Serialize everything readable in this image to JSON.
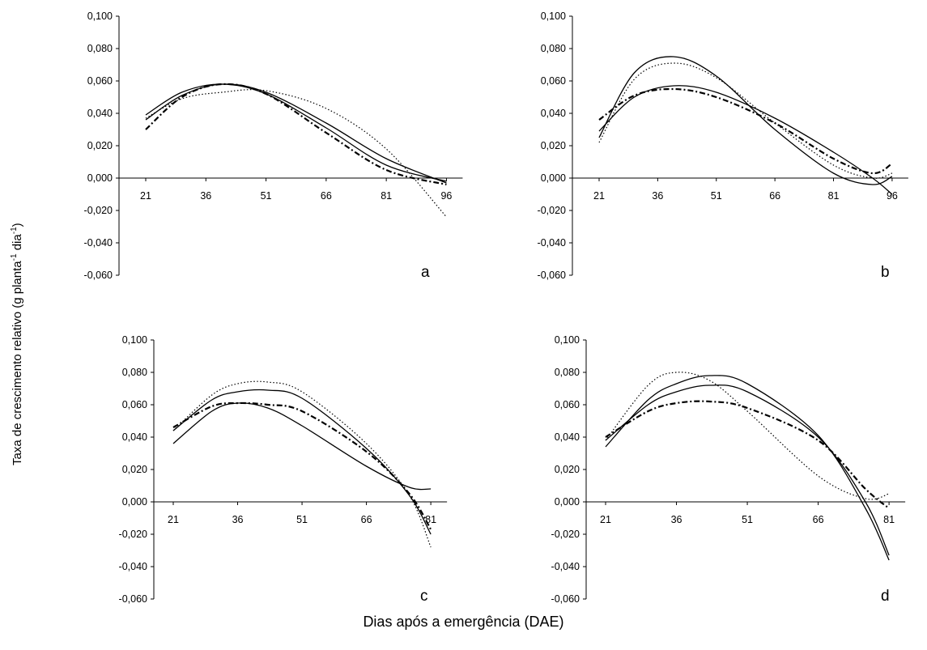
{
  "figure": {
    "ylabel": {
      "prefix": "Taxa de crescimento relativo (g planta",
      "sup1": "-1",
      "mid": " dia",
      "sup2": "-1",
      "suffix": ")"
    },
    "xlabel": "Dias após a emergência (DAE)"
  },
  "chart_data": [
    {
      "type": "line",
      "panel": "a",
      "x_ticks": [
        "21",
        "36",
        "51",
        "66",
        "81",
        "96"
      ],
      "y_ticks": [
        "0,100",
        "0,080",
        "0,060",
        "0,040",
        "0,020",
        "0,000",
        "-0,020",
        "-0,040",
        "-0,060"
      ],
      "xlim": [
        15,
        100
      ],
      "ylim": [
        -0.06,
        0.1
      ],
      "series": [
        {
          "style": "solid",
          "x": [
            21,
            30,
            40,
            51,
            66,
            81,
            96
          ],
          "y": [
            0.039,
            0.053,
            0.058,
            0.052,
            0.031,
            0.008,
            -0.002
          ]
        },
        {
          "style": "solid",
          "x": [
            21,
            30,
            40,
            51,
            66,
            81,
            96
          ],
          "y": [
            0.036,
            0.051,
            0.058,
            0.053,
            0.034,
            0.012,
            -0.003
          ]
        },
        {
          "style": "dotted",
          "x": [
            21,
            30,
            40,
            51,
            66,
            81,
            96
          ],
          "y": [
            0.037,
            0.049,
            0.053,
            0.054,
            0.043,
            0.018,
            -0.024
          ]
        },
        {
          "style": "dashdot",
          "x": [
            21,
            30,
            40,
            51,
            66,
            81,
            96
          ],
          "y": [
            0.03,
            0.05,
            0.058,
            0.052,
            0.028,
            0.005,
            -0.004
          ]
        }
      ]
    },
    {
      "type": "line",
      "panel": "b",
      "x_ticks": [
        "21",
        "36",
        "51",
        "66",
        "81",
        "96"
      ],
      "y_ticks": [
        "0,100",
        "0,080",
        "0,060",
        "0,040",
        "0,020",
        "0,000",
        "-0,020",
        "-0,040",
        "-0,060"
      ],
      "xlim": [
        15,
        100
      ],
      "ylim": [
        -0.06,
        0.1
      ],
      "series": [
        {
          "style": "solid",
          "x": [
            21,
            30,
            40,
            51,
            66,
            81,
            91,
            96
          ],
          "y": [
            0.025,
            0.065,
            0.075,
            0.063,
            0.03,
            0.003,
            -0.004,
            0.001
          ]
        },
        {
          "style": "dotted",
          "x": [
            21,
            30,
            40,
            51,
            66,
            81,
            91,
            96
          ],
          "y": [
            0.022,
            0.061,
            0.071,
            0.062,
            0.034,
            0.008,
            0.0,
            0.003
          ]
        },
        {
          "style": "solid",
          "x": [
            21,
            30,
            40,
            51,
            66,
            81,
            91,
            96
          ],
          "y": [
            0.029,
            0.05,
            0.057,
            0.053,
            0.037,
            0.016,
            0.0,
            -0.01
          ]
        },
        {
          "style": "dashdot",
          "x": [
            21,
            30,
            40,
            51,
            66,
            81,
            91,
            96
          ],
          "y": [
            0.036,
            0.051,
            0.055,
            0.05,
            0.034,
            0.012,
            0.003,
            0.009
          ]
        }
      ]
    },
    {
      "type": "line",
      "panel": "c",
      "x_ticks": [
        "21",
        "36",
        "51",
        "66",
        "81"
      ],
      "y_ticks": [
        "0,100",
        "0,080",
        "0,060",
        "0,040",
        "0,020",
        "0,000",
        "-0,020",
        "-0,040",
        "-0,060"
      ],
      "xlim": [
        15,
        84
      ],
      "ylim": [
        -0.06,
        0.1
      ],
      "series": [
        {
          "style": "solid",
          "x": [
            21,
            30,
            36,
            43,
            51,
            66,
            76,
            81
          ],
          "y": [
            0.036,
            0.056,
            0.061,
            0.058,
            0.047,
            0.022,
            0.009,
            0.008
          ]
        },
        {
          "style": "dotted",
          "x": [
            21,
            30,
            36,
            43,
            51,
            66,
            76,
            81
          ],
          "y": [
            0.044,
            0.066,
            0.073,
            0.074,
            0.068,
            0.036,
            0.004,
            -0.028
          ]
        },
        {
          "style": "solid",
          "x": [
            21,
            30,
            36,
            43,
            51,
            66,
            76,
            81
          ],
          "y": [
            0.044,
            0.063,
            0.068,
            0.069,
            0.064,
            0.033,
            0.004,
            -0.02
          ]
        },
        {
          "style": "dashdot",
          "x": [
            21,
            30,
            36,
            43,
            51,
            66,
            76,
            81
          ],
          "y": [
            0.046,
            0.059,
            0.061,
            0.06,
            0.056,
            0.031,
            0.005,
            -0.017
          ]
        }
      ]
    },
    {
      "type": "line",
      "panel": "d",
      "x_ticks": [
        "21",
        "36",
        "51",
        "66",
        "81"
      ],
      "y_ticks": [
        "0,100",
        "0,080",
        "0,060",
        "0,040",
        "0,020",
        "0,000",
        "-0,020",
        "-0,040",
        "-0,060"
      ],
      "xlim": [
        15,
        84
      ],
      "ylim": [
        -0.06,
        0.1
      ],
      "series": [
        {
          "style": "dotted",
          "x": [
            21,
            30,
            36,
            43,
            51,
            66,
            76,
            81
          ],
          "y": [
            0.038,
            0.072,
            0.08,
            0.075,
            0.056,
            0.016,
            0.002,
            0.005
          ]
        },
        {
          "style": "solid",
          "x": [
            21,
            30,
            36,
            43,
            51,
            66,
            76,
            81
          ],
          "y": [
            0.034,
            0.063,
            0.073,
            0.078,
            0.073,
            0.041,
            -0.004,
            -0.036
          ]
        },
        {
          "style": "solid",
          "x": [
            21,
            30,
            36,
            43,
            51,
            66,
            76,
            81
          ],
          "y": [
            0.038,
            0.06,
            0.068,
            0.072,
            0.068,
            0.04,
            0.0,
            -0.033
          ]
        },
        {
          "style": "dashdot",
          "x": [
            21,
            30,
            36,
            43,
            51,
            66,
            76,
            81
          ],
          "y": [
            0.04,
            0.056,
            0.061,
            0.062,
            0.058,
            0.038,
            0.008,
            -0.004
          ]
        }
      ]
    }
  ]
}
